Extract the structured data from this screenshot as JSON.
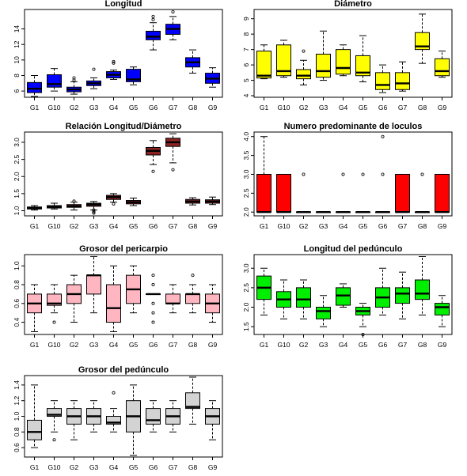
{
  "chart_data": [
    {
      "type": "boxplot",
      "title": "Longitud",
      "categories": [
        "G1",
        "G10",
        "G2",
        "G3",
        "G4",
        "G5",
        "G6",
        "G7",
        "G8",
        "G9"
      ],
      "ylim": [
        5.2,
        16.5
      ],
      "yticks": [
        6,
        8,
        10,
        12,
        14
      ],
      "fill": "#0000ff",
      "boxes": [
        {
          "min": 5.3,
          "q1": 5.8,
          "median": 6.3,
          "q3": 7.1,
          "max": 8.0,
          "outliers": []
        },
        {
          "min": 6.0,
          "q1": 6.5,
          "median": 6.9,
          "q3": 8.1,
          "max": 8.9,
          "outliers": []
        },
        {
          "min": 5.6,
          "q1": 5.9,
          "median": 6.2,
          "q3": 6.5,
          "max": 7.2,
          "outliers": [
            7.4,
            7.7
          ]
        },
        {
          "min": 6.3,
          "q1": 6.7,
          "median": 7.0,
          "q3": 7.3,
          "max": 7.7,
          "outliers": [
            8.8
          ]
        },
        {
          "min": 7.5,
          "q1": 7.7,
          "median": 8.1,
          "q3": 8.5,
          "max": 8.7,
          "outliers": [
            9.6,
            9.8
          ]
        },
        {
          "min": 6.8,
          "q1": 7.2,
          "median": 7.5,
          "q3": 8.8,
          "max": 9.1,
          "outliers": []
        },
        {
          "min": 11.3,
          "q1": 12.6,
          "median": 13.0,
          "q3": 13.7,
          "max": 14.8,
          "outliers": [
            15.2,
            15.6
          ]
        },
        {
          "min": 12.6,
          "q1": 13.3,
          "median": 14.0,
          "q3": 14.6,
          "max": 15.6,
          "outliers": [
            16.2
          ]
        },
        {
          "min": 8.3,
          "q1": 9.1,
          "median": 9.7,
          "q3": 10.3,
          "max": 11.3,
          "outliers": []
        },
        {
          "min": 6.5,
          "q1": 7.0,
          "median": 7.6,
          "q3": 8.3,
          "max": 9.0,
          "outliers": []
        }
      ]
    },
    {
      "type": "boxplot",
      "title": "Diámetro",
      "categories": [
        "G1",
        "G10",
        "G2",
        "G3",
        "G4",
        "G5",
        "G6",
        "G7",
        "G8",
        "G9"
      ],
      "ylim": [
        3.9,
        9.6
      ],
      "yticks": [
        4,
        5,
        6,
        7,
        8,
        9
      ],
      "fill": "#ffff00",
      "boxes": [
        {
          "min": 5.1,
          "q1": 5.15,
          "median": 5.3,
          "q3": 6.9,
          "max": 7.3,
          "outliers": []
        },
        {
          "min": 5.2,
          "q1": 5.3,
          "median": 5.6,
          "q3": 7.3,
          "max": 7.6,
          "outliers": []
        },
        {
          "min": 4.7,
          "q1": 5.1,
          "median": 5.3,
          "q3": 5.7,
          "max": 6.3,
          "outliers": [
            6.9
          ]
        },
        {
          "min": 5.0,
          "q1": 5.2,
          "median": 5.6,
          "q3": 6.7,
          "max": 8.2,
          "outliers": []
        },
        {
          "min": 5.3,
          "q1": 5.4,
          "median": 5.8,
          "q3": 7.0,
          "max": 7.3,
          "outliers": []
        },
        {
          "min": 4.9,
          "q1": 5.3,
          "median": 5.5,
          "q3": 6.6,
          "max": 7.9,
          "outliers": []
        },
        {
          "min": 4.2,
          "q1": 4.4,
          "median": 4.7,
          "q3": 5.5,
          "max": 6.0,
          "outliers": []
        },
        {
          "min": 4.3,
          "q1": 4.4,
          "median": 4.8,
          "q3": 5.5,
          "max": 6.2,
          "outliers": []
        },
        {
          "min": 6.1,
          "q1": 7.0,
          "median": 7.2,
          "q3": 8.1,
          "max": 9.3,
          "outliers": []
        },
        {
          "min": 5.2,
          "q1": 5.3,
          "median": 5.6,
          "q3": 6.4,
          "max": 6.9,
          "outliers": []
        }
      ]
    },
    {
      "type": "boxplot",
      "title": "Relación Longitud/Diámetro",
      "categories": [
        "G1",
        "G10",
        "G2",
        "G3",
        "G4",
        "G5",
        "G6",
        "G7",
        "G8",
        "G9"
      ],
      "ylim": [
        0.85,
        3.3
      ],
      "yticks": [
        1.0,
        1.5,
        2.0,
        2.5,
        3.0
      ],
      "fill": "#8b2323",
      "boxes": [
        {
          "min": 1.02,
          "q1": 1.05,
          "median": 1.08,
          "q3": 1.11,
          "max": 1.15,
          "outliers": []
        },
        {
          "min": 1.05,
          "q1": 1.08,
          "median": 1.12,
          "q3": 1.15,
          "max": 1.22,
          "outliers": []
        },
        {
          "min": 1.02,
          "q1": 1.1,
          "median": 1.13,
          "q3": 1.18,
          "max": 1.25,
          "outliers": [
            1.28
          ]
        },
        {
          "min": 1.02,
          "q1": 1.13,
          "median": 1.18,
          "q3": 1.22,
          "max": 1.27,
          "outliers": [
            0.93,
            0.97,
            1.02
          ]
        },
        {
          "min": 1.25,
          "q1": 1.33,
          "median": 1.4,
          "q3": 1.45,
          "max": 1.5,
          "outliers": [
            1.2
          ]
        },
        {
          "min": 1.15,
          "q1": 1.2,
          "median": 1.25,
          "q3": 1.3,
          "max": 1.37,
          "outliers": []
        },
        {
          "min": 2.35,
          "q1": 2.63,
          "median": 2.75,
          "q3": 2.85,
          "max": 3.05,
          "outliers": [
            2.15
          ]
        },
        {
          "min": 2.4,
          "q1": 2.88,
          "median": 3.0,
          "q3": 3.12,
          "max": 3.25,
          "outliers": [
            2.2
          ]
        },
        {
          "min": 1.17,
          "q1": 1.22,
          "median": 1.27,
          "q3": 1.33,
          "max": 1.38,
          "outliers": []
        },
        {
          "min": 1.18,
          "q1": 1.22,
          "median": 1.27,
          "q3": 1.32,
          "max": 1.4,
          "outliers": []
        }
      ]
    },
    {
      "type": "boxplot",
      "title": "Numero predominante de loculos",
      "categories": [
        "G1",
        "G10",
        "G2",
        "G3",
        "G4",
        "G5",
        "G6",
        "G7",
        "G8",
        "G9"
      ],
      "ylim": [
        1.9,
        4.12
      ],
      "yticks": [
        2.0,
        2.5,
        3.0,
        3.5,
        4.0
      ],
      "fill": "#ff0000",
      "boxes": [
        {
          "min": 2,
          "q1": 2,
          "median": 2,
          "q3": 3,
          "max": 4,
          "outliers": []
        },
        {
          "min": 2,
          "q1": 2,
          "median": 2,
          "q3": 3,
          "max": 3,
          "outliers": []
        },
        {
          "min": 2,
          "q1": 2,
          "median": 2,
          "q3": 2,
          "max": 2,
          "outliers": [
            3
          ]
        },
        {
          "min": 2,
          "q1": 2,
          "median": 2,
          "q3": 2,
          "max": 2,
          "outliers": []
        },
        {
          "min": 2,
          "q1": 2,
          "median": 2,
          "q3": 2,
          "max": 2,
          "outliers": [
            3
          ]
        },
        {
          "min": 2,
          "q1": 2,
          "median": 2,
          "q3": 2,
          "max": 2,
          "outliers": [
            3
          ]
        },
        {
          "min": 2,
          "q1": 2,
          "median": 2,
          "q3": 2,
          "max": 2,
          "outliers": [
            3,
            4
          ]
        },
        {
          "min": 2,
          "q1": 2,
          "median": 2,
          "q3": 3,
          "max": 3,
          "outliers": []
        },
        {
          "min": 2,
          "q1": 2,
          "median": 2,
          "q3": 2,
          "max": 2,
          "outliers": [
            3
          ]
        },
        {
          "min": 2,
          "q1": 2,
          "median": 2,
          "q3": 3,
          "max": 3,
          "outliers": []
        }
      ]
    },
    {
      "type": "boxplot",
      "title": "Grosor del pericarpio",
      "categories": [
        "G1",
        "G10",
        "G2",
        "G3",
        "G4",
        "G5",
        "G6",
        "G7",
        "G8",
        "G9"
      ],
      "ylim": [
        0.27,
        1.12
      ],
      "yticks": [
        0.4,
        0.6,
        0.8,
        1.0
      ],
      "fill": "#ffb6c1",
      "boxes": [
        {
          "min": 0.3,
          "q1": 0.5,
          "median": 0.6,
          "q3": 0.7,
          "max": 0.8,
          "outliers": []
        },
        {
          "min": 0.5,
          "q1": 0.58,
          "median": 0.6,
          "q3": 0.7,
          "max": 0.8,
          "outliers": [
            0.4
          ]
        },
        {
          "min": 0.4,
          "q1": 0.6,
          "median": 0.7,
          "q3": 0.8,
          "max": 0.9,
          "outliers": []
        },
        {
          "min": 0.5,
          "q1": 0.7,
          "median": 0.9,
          "q3": 0.9,
          "max": 1.1,
          "outliers": []
        },
        {
          "min": 0.3,
          "q1": 0.4,
          "median": 0.55,
          "q3": 0.8,
          "max": 1.0,
          "outliers": []
        },
        {
          "min": 0.5,
          "q1": 0.6,
          "median": 0.75,
          "q3": 0.9,
          "max": 1.0,
          "outliers": []
        },
        {
          "min": 0.7,
          "q1": 0.7,
          "median": 0.7,
          "q3": 0.7,
          "max": 0.7,
          "outliers": [
            0.4,
            0.5,
            0.6,
            0.8,
            0.9
          ]
        },
        {
          "min": 0.5,
          "q1": 0.6,
          "median": 0.6,
          "q3": 0.7,
          "max": 0.8,
          "outliers": []
        },
        {
          "min": 0.5,
          "q1": 0.6,
          "median": 0.7,
          "q3": 0.7,
          "max": 0.8,
          "outliers": [
            0.9
          ]
        },
        {
          "min": 0.4,
          "q1": 0.5,
          "median": 0.6,
          "q3": 0.7,
          "max": 0.8,
          "outliers": []
        }
      ]
    },
    {
      "type": "boxplot",
      "title": "Longitud del pedúnculo",
      "categories": [
        "G1",
        "G10",
        "G2",
        "G3",
        "G4",
        "G5",
        "G6",
        "G7",
        "G8",
        "G9"
      ],
      "ylim": [
        1.3,
        3.35
      ],
      "yticks": [
        1.5,
        2.0,
        2.5,
        3.0
      ],
      "fill": "#00ee00",
      "boxes": [
        {
          "min": 1.8,
          "q1": 2.2,
          "median": 2.5,
          "q3": 2.8,
          "max": 3.0,
          "outliers": []
        },
        {
          "min": 1.7,
          "q1": 2.0,
          "median": 2.2,
          "q3": 2.4,
          "max": 2.7,
          "outliers": []
        },
        {
          "min": 1.7,
          "q1": 2.0,
          "median": 2.2,
          "q3": 2.5,
          "max": 2.7,
          "outliers": []
        },
        {
          "min": 1.5,
          "q1": 1.7,
          "median": 1.9,
          "q3": 2.0,
          "max": 2.3,
          "outliers": []
        },
        {
          "min": 2.0,
          "q1": 2.05,
          "median": 2.3,
          "q3": 2.5,
          "max": 2.6,
          "outliers": []
        },
        {
          "min": 1.5,
          "q1": 1.8,
          "median": 1.9,
          "q3": 2.0,
          "max": 2.1,
          "outliers": [
            1.3
          ]
        },
        {
          "min": 1.8,
          "q1": 2.0,
          "median": 2.25,
          "q3": 2.5,
          "max": 3.0,
          "outliers": []
        },
        {
          "min": 1.7,
          "q1": 2.1,
          "median": 2.35,
          "q3": 2.5,
          "max": 2.9,
          "outliers": []
        },
        {
          "min": 1.8,
          "q1": 2.2,
          "median": 2.35,
          "q3": 2.7,
          "max": 3.3,
          "outliers": []
        },
        {
          "min": 1.5,
          "q1": 1.8,
          "median": 2.0,
          "q3": 2.1,
          "max": 2.3,
          "outliers": []
        }
      ]
    },
    {
      "type": "boxplot",
      "title": "Grosor del pedúnculo",
      "categories": [
        "G1",
        "G10",
        "G2",
        "G3",
        "G4",
        "G5",
        "G6",
        "G7",
        "G8",
        "G9"
      ],
      "ylim": [
        0.48,
        1.52
      ],
      "yticks": [
        0.6,
        0.8,
        1.0,
        1.2,
        1.4
      ],
      "fill": "#d3d3d3",
      "boxes": [
        {
          "min": 0.6,
          "q1": 0.7,
          "median": 0.8,
          "q3": 0.95,
          "max": 1.4,
          "outliers": []
        },
        {
          "min": 0.8,
          "q1": 1.0,
          "median": 1.02,
          "q3": 1.1,
          "max": 1.2,
          "outliers": [
            0.7
          ]
        },
        {
          "min": 0.7,
          "q1": 0.9,
          "median": 1.0,
          "q3": 1.1,
          "max": 1.2,
          "outliers": []
        },
        {
          "min": 0.8,
          "q1": 0.9,
          "median": 1.0,
          "q3": 1.1,
          "max": 1.2,
          "outliers": []
        },
        {
          "min": 0.8,
          "q1": 0.9,
          "median": 0.92,
          "q3": 1.0,
          "max": 1.1,
          "outliers": [
            1.3
          ]
        },
        {
          "min": 0.5,
          "q1": 0.8,
          "median": 1.0,
          "q3": 1.2,
          "max": 1.4,
          "outliers": []
        },
        {
          "min": 0.8,
          "q1": 0.9,
          "median": 0.95,
          "q3": 1.1,
          "max": 1.2,
          "outliers": []
        },
        {
          "min": 0.8,
          "q1": 0.9,
          "median": 1.0,
          "q3": 1.1,
          "max": 1.2,
          "outliers": []
        },
        {
          "min": 0.9,
          "q1": 1.1,
          "median": 1.12,
          "q3": 1.3,
          "max": 1.5,
          "outliers": []
        },
        {
          "min": 0.7,
          "q1": 0.9,
          "median": 1.0,
          "q3": 1.1,
          "max": 1.2,
          "outliers": []
        }
      ]
    }
  ]
}
